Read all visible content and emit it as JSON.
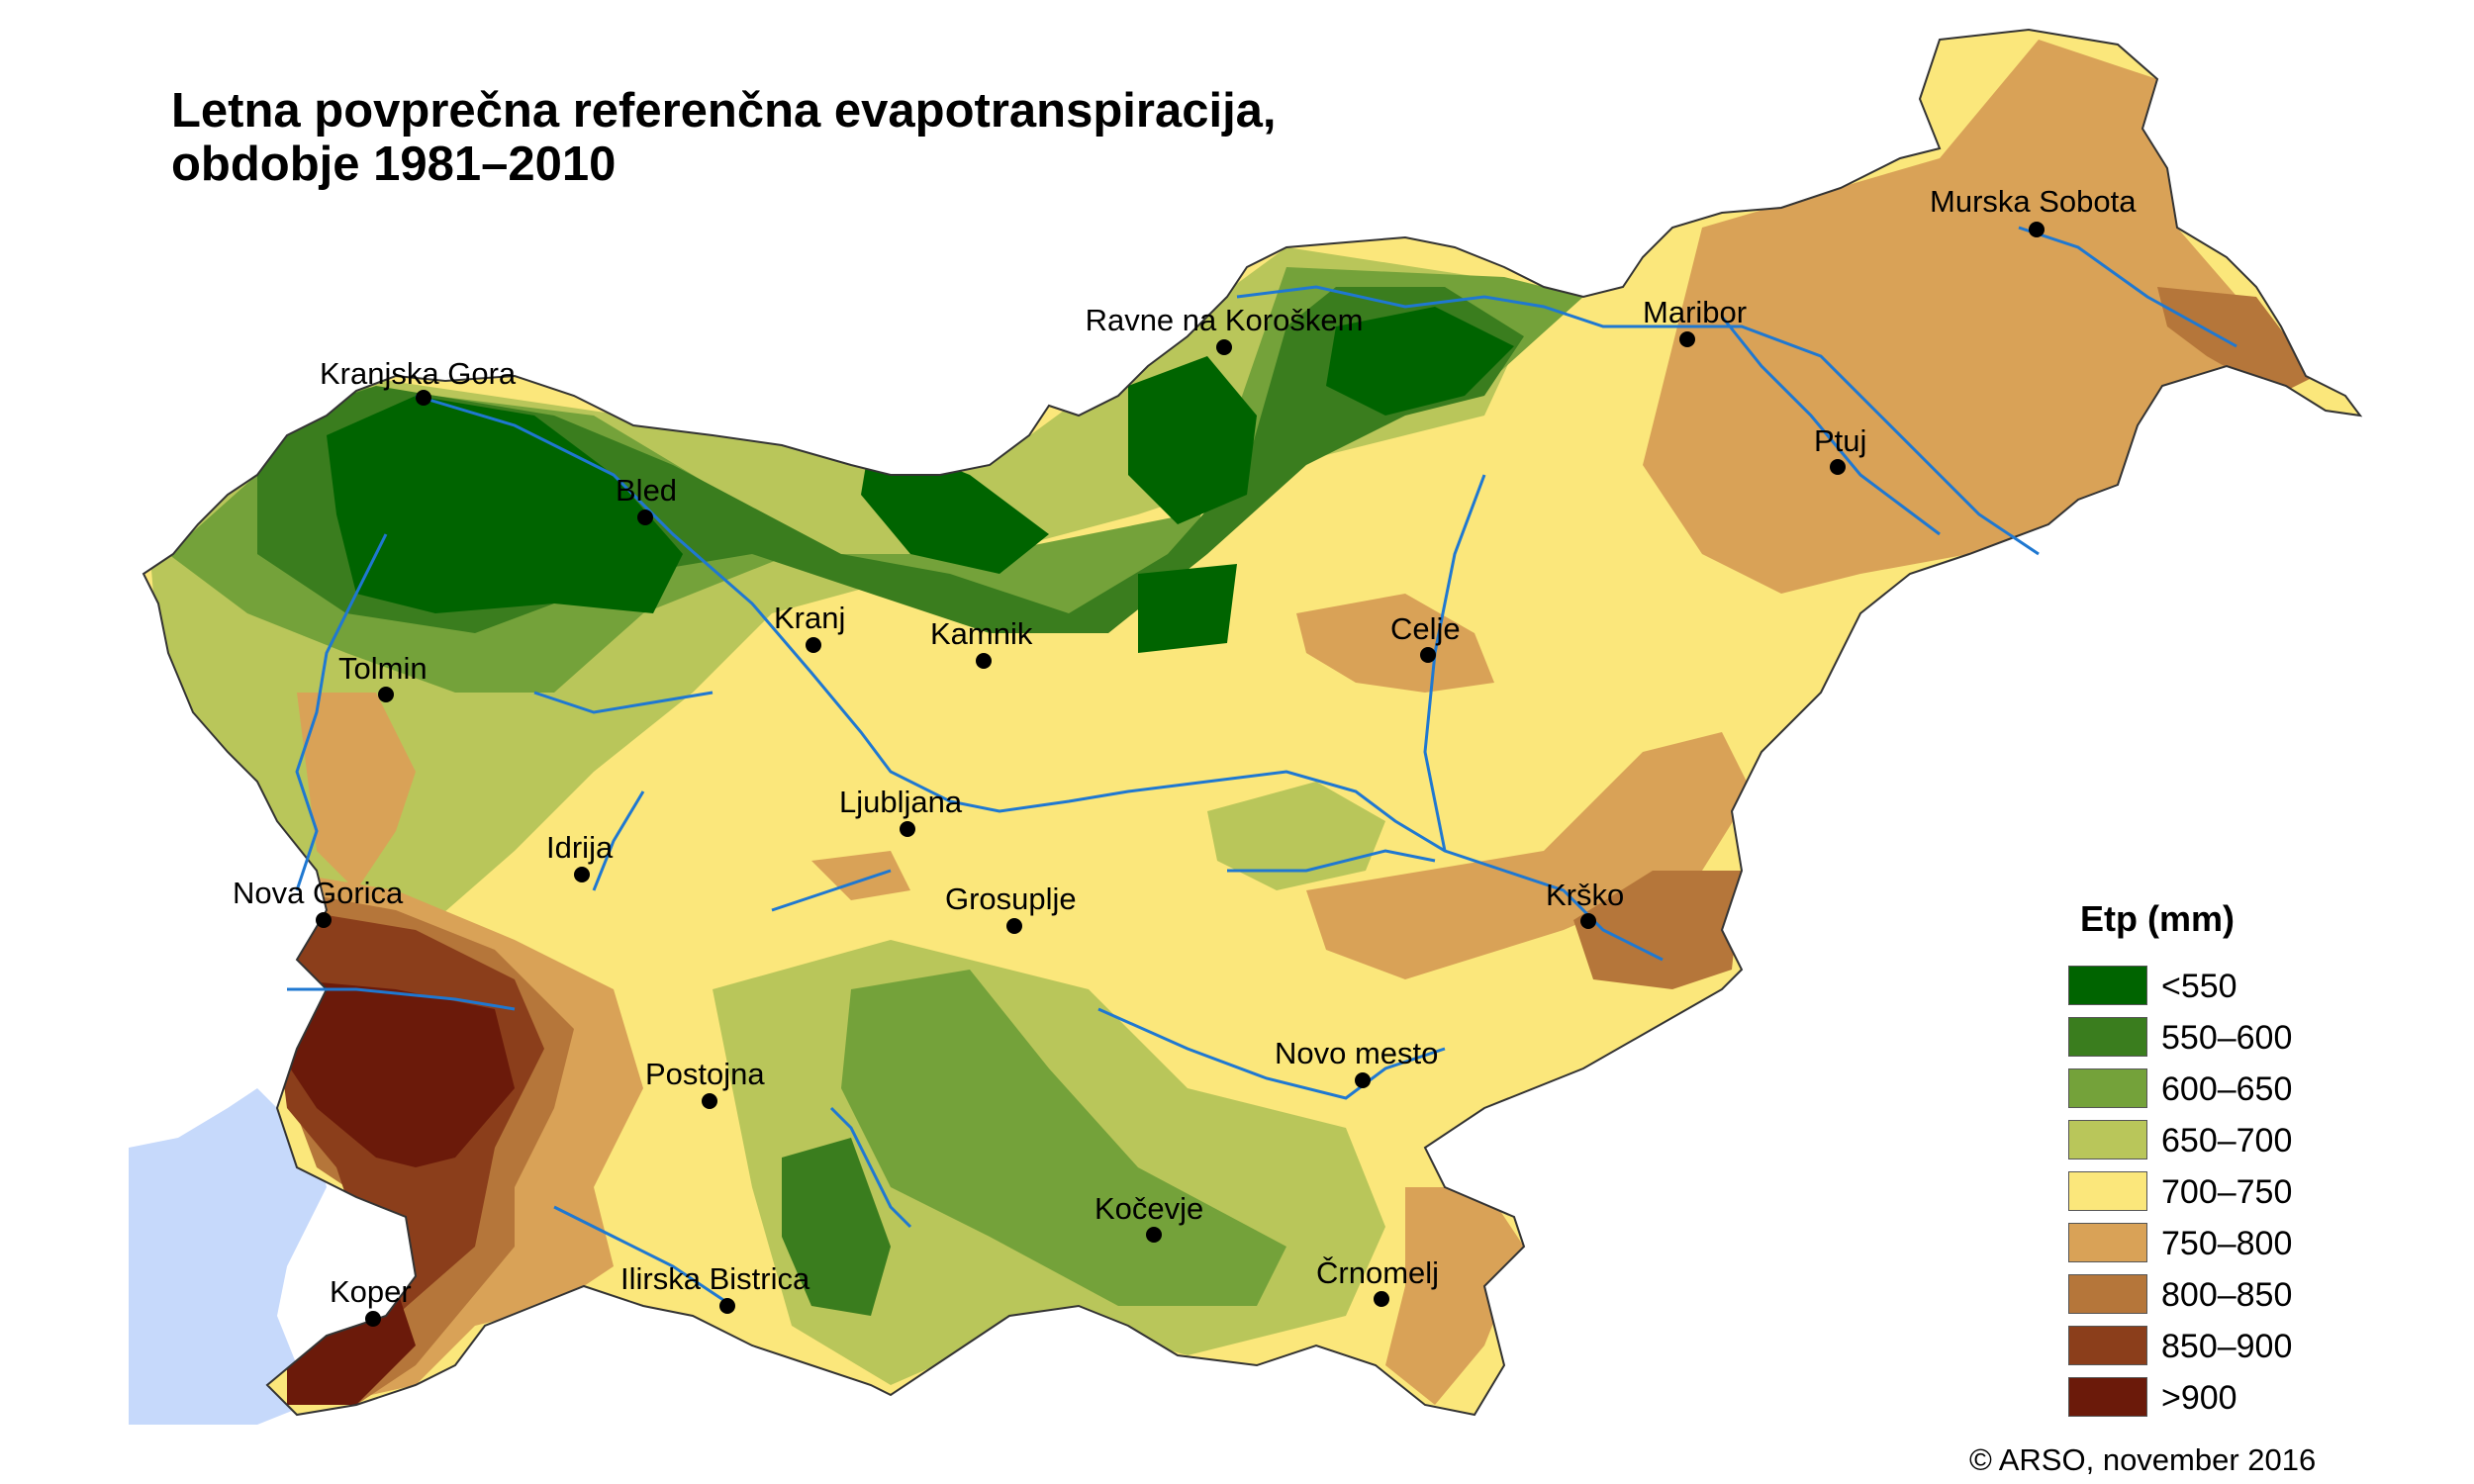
{
  "title": {
    "line1": "Letna povprečna referenčna evapotranspiracija,",
    "line2": "obdobje 1981–2010"
  },
  "legend": {
    "title": "Etp (mm)",
    "items": [
      {
        "label": "<550",
        "color": "#006400"
      },
      {
        "label": "550–600",
        "color": "#3a7d1e"
      },
      {
        "label": "600–650",
        "color": "#74a23a"
      },
      {
        "label": "650–700",
        "color": "#b9c65a"
      },
      {
        "label": "700–750",
        "color": "#fbe77b"
      },
      {
        "label": "750–800",
        "color": "#d9a257"
      },
      {
        "label": "800–850",
        "color": "#b5763a"
      },
      {
        "label": "850–900",
        "color": "#8b3e1b"
      },
      {
        "label": ">900",
        "color": "#6b1a0a"
      }
    ]
  },
  "cities": [
    "Murska Sobota",
    "Maribor",
    "Ravne na Koroškem",
    "Kranjska Gora",
    "Ptuj",
    "Bled",
    "Kranj",
    "Kamnik",
    "Celje",
    "Tolmin",
    "Ljubljana",
    "Idrija",
    "Nova Gorica",
    "Grosuplje",
    "Krško",
    "Novo mesto",
    "Postojna",
    "Kočevje",
    "Črnomelj",
    "Ilirska Bistrica",
    "Koper"
  ],
  "sea_color": "#c6d9fb",
  "river_color": "#1f78d1",
  "credit": "© ARSO, november 2016"
}
